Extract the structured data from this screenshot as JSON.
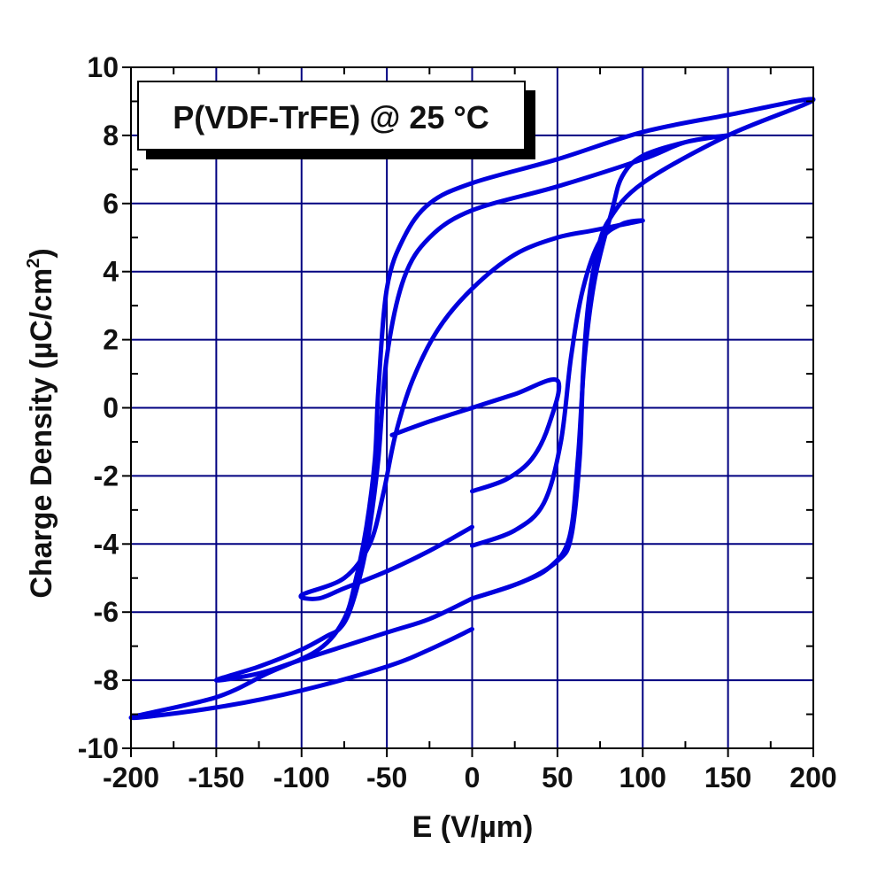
{
  "chart_data": {
    "type": "line",
    "title": "",
    "annotation": "P(VDF-TrFE) @ 25 °C",
    "xlabel": "E (V/µm)",
    "ylabel": "Charge Density (µC/cm",
    "ylabel_superscript": "2",
    "ylabel_close": ")",
    "xlim": [
      -200,
      200
    ],
    "ylim": [
      -10,
      10
    ],
    "xticks": [
      -200,
      -150,
      -100,
      -50,
      0,
      50,
      100,
      150,
      200
    ],
    "yticks": [
      -10,
      -8,
      -6,
      -4,
      -2,
      0,
      2,
      4,
      6,
      8,
      10
    ],
    "grid": true,
    "grid_color": "#000080",
    "line_color": "#0000dd",
    "series": [
      {
        "points": [
          [
            0,
            -2.45
          ],
          [
            20,
            -2.1
          ],
          [
            35,
            -1.5
          ],
          [
            45,
            -0.5
          ],
          [
            50,
            0.8
          ],
          [
            25,
            0.4
          ],
          [
            0,
            0
          ],
          [
            -25,
            -0.4
          ],
          [
            -47,
            -0.8
          ]
        ]
      },
      {
        "points": [
          [
            0,
            -4.05
          ],
          [
            25,
            -3.6
          ],
          [
            42,
            -2.8
          ],
          [
            52,
            -1
          ],
          [
            58,
            1.5
          ],
          [
            65,
            3.5
          ],
          [
            75,
            4.9
          ],
          [
            88,
            5.4
          ],
          [
            100,
            5.5
          ],
          [
            85,
            5.35
          ],
          [
            70,
            5.2
          ],
          [
            50,
            5
          ],
          [
            25,
            4.5
          ],
          [
            0,
            3.5
          ],
          [
            -20,
            2.3
          ],
          [
            -35,
            0.8
          ],
          [
            -45,
            -0.8
          ],
          [
            -52,
            -2.5
          ],
          [
            -60,
            -4
          ],
          [
            -75,
            -5
          ],
          [
            -100,
            -5.5
          ],
          [
            -90,
            -5.6
          ],
          [
            -75,
            -5.3
          ],
          [
            -50,
            -4.8
          ],
          [
            -25,
            -4.2
          ],
          [
            0,
            -3.5
          ]
        ]
      },
      {
        "points": [
          [
            0,
            -5.6
          ],
          [
            25,
            -5.2
          ],
          [
            45,
            -4.7
          ],
          [
            57,
            -3.8
          ],
          [
            62,
            -1.5
          ],
          [
            66,
            1.5
          ],
          [
            72,
            3.8
          ],
          [
            82,
            5.8
          ],
          [
            88,
            6.8
          ],
          [
            100,
            7.4
          ],
          [
            125,
            7.8
          ],
          [
            150,
            8.0
          ],
          [
            125,
            7.8
          ],
          [
            100,
            7.3
          ],
          [
            50,
            6.5
          ],
          [
            0,
            5.8
          ],
          [
            -25,
            5
          ],
          [
            -40,
            3.8
          ],
          [
            -50,
            1.5
          ],
          [
            -55,
            -1.5
          ],
          [
            -60,
            -3.5
          ],
          [
            -65,
            -4.8
          ],
          [
            -72,
            -6
          ],
          [
            -78,
            -6.5
          ],
          [
            -85,
            -6.7
          ],
          [
            -100,
            -7.1
          ],
          [
            -125,
            -7.6
          ],
          [
            -150,
            -8.0
          ],
          [
            -125,
            -7.8
          ],
          [
            -100,
            -7.4
          ],
          [
            -50,
            -6.6
          ],
          [
            -25,
            -6.2
          ],
          [
            0,
            -5.6
          ]
        ]
      },
      {
        "points": [
          [
            0,
            -5.6
          ],
          [
            30,
            -5.1
          ],
          [
            50,
            -4.5
          ],
          [
            58,
            -3.8
          ],
          [
            63,
            -1.5
          ],
          [
            65,
            1
          ],
          [
            68,
            3
          ],
          [
            73,
            4.5
          ],
          [
            80,
            5.5
          ],
          [
            100,
            6.6
          ],
          [
            150,
            8.0
          ],
          [
            200,
            9.05
          ],
          [
            150,
            8.6
          ],
          [
            100,
            8.1
          ],
          [
            50,
            7.3
          ],
          [
            0,
            6.6
          ],
          [
            -25,
            6
          ],
          [
            -40,
            5
          ],
          [
            -50,
            3.5
          ],
          [
            -55,
            0.5
          ],
          [
            -57,
            -1.5
          ],
          [
            -62,
            -3.5
          ],
          [
            -68,
            -5
          ],
          [
            -75,
            -6.2
          ],
          [
            -90,
            -7.1
          ],
          [
            -120,
            -7.8
          ],
          [
            -150,
            -8.5
          ],
          [
            -200,
            -9.1
          ],
          [
            -150,
            -8.8
          ],
          [
            -100,
            -8.3
          ],
          [
            -50,
            -7.6
          ],
          [
            -25,
            -7.1
          ],
          [
            0,
            -6.5
          ]
        ]
      }
    ]
  }
}
